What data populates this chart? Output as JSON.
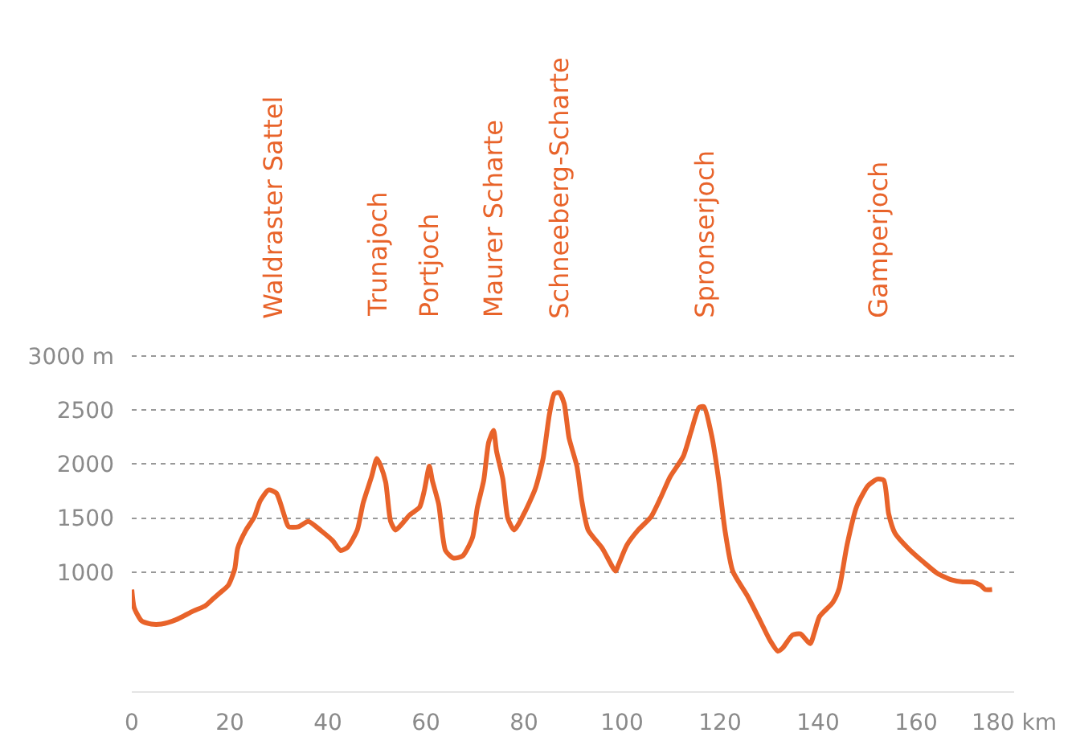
{
  "chart_data": {
    "type": "line",
    "x": [
      0,
      0.5,
      2,
      4,
      6,
      9,
      12.5,
      15,
      16.5,
      18,
      19.7,
      21,
      21.6,
      23.3,
      25,
      26.2,
      27.9,
      29.5,
      31,
      32,
      34,
      36,
      38.7,
      41,
      42.6,
      44,
      46,
      47.2,
      48.9,
      50,
      50.8,
      51.8,
      52.8,
      53.8,
      55,
      56.7,
      58.7,
      59.7,
      60.7,
      61.3,
      62.6,
      64,
      65.6,
      67.5,
      69.5,
      70.5,
      71.8,
      72.8,
      73.8,
      74.4,
      75.7,
      76.7,
      78,
      80,
      82.3,
      83.9,
      85.2,
      86.2,
      87.2,
      88.2,
      89.2,
      90.8,
      91.8,
      93.1,
      96,
      98.7,
      99.3,
      101,
      103.3,
      105.9,
      107.9,
      109.8,
      112.5,
      114.1,
      115.7,
      116.7,
      118.4,
      119.7,
      121,
      122.6,
      125.6,
      128.2,
      130.2,
      131.8,
      132.8,
      134.8,
      136.4,
      138.4,
      139.3,
      140.3,
      143,
      144.3,
      145.9,
      147.9,
      150.2,
      152.1,
      153.4,
      154.4,
      155.7,
      158.4,
      161.6,
      164.3,
      167.2,
      169.5,
      171.5,
      173.1,
      174.1,
      175.5
    ],
    "series": [
      {
        "color": "#e8632a",
        "values": [
          840,
          670,
          550,
          520,
          520,
          560,
          640,
          690,
          750,
          810,
          880,
          1030,
          1220,
          1390,
          1510,
          1660,
          1760,
          1730,
          1540,
          1420,
          1420,
          1470,
          1380,
          1290,
          1200,
          1230,
          1390,
          1640,
          1880,
          2050,
          1980,
          1830,
          1470,
          1390,
          1440,
          1530,
          1600,
          1760,
          1980,
          1850,
          1630,
          1200,
          1130,
          1150,
          1320,
          1600,
          1850,
          2200,
          2310,
          2120,
          1860,
          1500,
          1390,
          1540,
          1770,
          2050,
          2460,
          2650,
          2660,
          2560,
          2240,
          1980,
          1660,
          1390,
          1220,
          1010,
          1070,
          1250,
          1390,
          1510,
          1690,
          1880,
          2070,
          2300,
          2520,
          2530,
          2240,
          1860,
          1390,
          1010,
          780,
          550,
          370,
          270,
          300,
          420,
          430,
          340,
          450,
          590,
          720,
          850,
          1250,
          1610,
          1800,
          1860,
          1850,
          1540,
          1360,
          1220,
          1090,
          990,
          930,
          910,
          910,
          880,
          840,
          840
        ]
      }
    ],
    "xlim": [
      0,
      180
    ],
    "ylim": [
      -100,
      3020
    ],
    "xticks": [
      0,
      20,
      40,
      60,
      80,
      100,
      120,
      140,
      160,
      {
        "value": 180,
        "label": "180 km"
      }
    ],
    "yticks": [
      1000,
      1500,
      2000,
      2500,
      {
        "value": 3000,
        "label": "3000 m"
      }
    ],
    "grid": "y",
    "line_style": "solid",
    "marker": "none",
    "annotations": [
      "Waldraster Sattel",
      "Trunajoch",
      "Portjoch",
      "Maurer Scharte",
      "Schneeberg-Scharte",
      "Spronserjoch",
      "Gamperjoch"
    ]
  }
}
